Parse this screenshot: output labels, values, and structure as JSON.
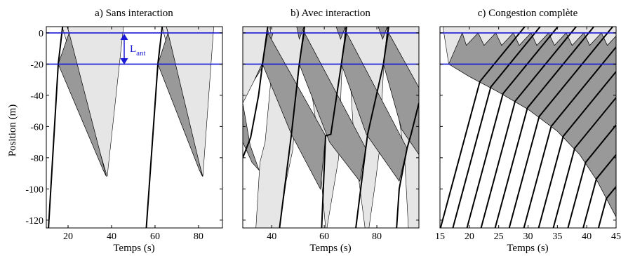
{
  "figure": {
    "ylabel": "Position (m)",
    "colors": {
      "reference_line": "#1a1ad6",
      "light_region": "#e6e6e6",
      "dark_region": "#999999",
      "trajectory": "#000000"
    }
  },
  "chart_data": [
    {
      "type": "area",
      "title": "a) Sans interaction",
      "xlabel": "Temps (s)",
      "ylabel": "Position (m)",
      "xlim": [
        10,
        91
      ],
      "ylim": [
        -125,
        4
      ],
      "xticks": [
        20,
        40,
        60,
        80
      ],
      "yticks": [
        0,
        -20,
        -40,
        -60,
        -80,
        -100,
        -120
      ],
      "ytick_labels": [
        "0",
        "-20",
        "-40",
        "-60",
        "-80",
        "-100",
        "-120"
      ],
      "reference_lines": [
        0,
        -20
      ],
      "annotation": {
        "text": "L",
        "subscript": "ant",
        "between": [
          0,
          -20
        ],
        "x": 45.5
      },
      "light_regions": [
        [
          [
            17.3,
            4
          ],
          [
            38,
            -92
          ],
          [
            45.5,
            4
          ]
        ],
        [
          [
            63.2,
            4
          ],
          [
            82,
            -92
          ],
          [
            87,
            4
          ]
        ]
      ],
      "dark_regions": [
        [
          [
            15.5,
            -20
          ],
          [
            20.5,
            0
          ],
          [
            37.6,
            -92
          ],
          [
            36.2,
            -88
          ]
        ],
        [
          [
            61.3,
            -20
          ],
          [
            66,
            0
          ],
          [
            81.8,
            -92
          ],
          [
            80.4,
            -88
          ]
        ]
      ],
      "trajectories": [
        [
          [
            11,
            -125
          ],
          [
            15.5,
            -20
          ],
          [
            17.5,
            4
          ]
        ],
        [
          [
            56,
            -125
          ],
          [
            61.3,
            -20
          ],
          [
            63.3,
            4
          ]
        ]
      ],
      "thin_lines": [
        [
          [
            20.5,
            0
          ],
          [
            19.6,
            4
          ]
        ],
        [
          [
            66,
            0
          ],
          [
            65.2,
            4
          ]
        ]
      ]
    },
    {
      "type": "area",
      "title": "b) Avec interaction",
      "xlabel": "Temps (s)",
      "xlim": [
        29,
        96
      ],
      "ylim": [
        -125,
        4
      ],
      "xticks": [
        40,
        60,
        80
      ],
      "yticks": [
        0,
        -20,
        -40,
        -60,
        -80,
        -100,
        -120
      ],
      "reference_lines": [
        0,
        -20
      ],
      "light_regions": [
        [
          [
            29,
            4
          ],
          [
            96,
            4
          ],
          [
            96,
            -125
          ],
          [
            29,
            -125
          ]
        ]
      ],
      "white_regions": [
        [
          [
            29,
            -125
          ],
          [
            29,
            -45
          ],
          [
            33.5,
            -30
          ],
          [
            36.3,
            -20
          ],
          [
            37.5,
            -10
          ],
          [
            38.5,
            0
          ],
          [
            39.5,
            4
          ],
          [
            39.7,
            -30
          ],
          [
            37.5,
            -70
          ],
          [
            35.5,
            -83
          ],
          [
            34,
            -125
          ]
        ],
        [
          [
            43,
            -125
          ],
          [
            45.5,
            -95
          ],
          [
            48,
            -75
          ],
          [
            50.5,
            -20
          ],
          [
            52.3,
            4
          ],
          [
            54.5,
            -30
          ],
          [
            57.5,
            -65
          ],
          [
            59,
            -97
          ],
          [
            60.5,
            -125
          ]
        ],
        [
          [
            61,
            -125
          ],
          [
            63,
            -105
          ],
          [
            65.5,
            -80
          ],
          [
            66.5,
            -30
          ],
          [
            68,
            4
          ],
          [
            69.5,
            -20
          ],
          [
            71,
            -60
          ],
          [
            72.3,
            -83
          ],
          [
            75.5,
            -125
          ]
        ],
        [
          [
            77,
            -125
          ],
          [
            79.5,
            -95
          ],
          [
            81,
            -75
          ],
          [
            82.5,
            -25
          ],
          [
            84,
            4
          ],
          [
            86.5,
            -20
          ],
          [
            88,
            -50
          ],
          [
            90.5,
            -78
          ],
          [
            92,
            -125
          ]
        ]
      ],
      "dark_regions": [
        [
          [
            29,
            -45
          ],
          [
            29,
            -70
          ],
          [
            32.5,
            -83
          ],
          [
            35.2,
            -88
          ],
          [
            31.8,
            -72
          ]
        ],
        [
          [
            33.5,
            -30
          ],
          [
            36.3,
            -20
          ],
          [
            38.5,
            0
          ],
          [
            40.5,
            0
          ],
          [
            37.2,
            -20
          ]
        ],
        [
          [
            36.5,
            -20
          ],
          [
            38.5,
            0
          ],
          [
            60.5,
            -66
          ],
          [
            58.5,
            -100
          ],
          [
            47.5,
            -65
          ],
          [
            36.5,
            -20
          ]
        ],
        [
          [
            50.5,
            -20
          ],
          [
            52.5,
            0
          ],
          [
            75.8,
            -74
          ],
          [
            73.5,
            -95
          ],
          [
            62,
            -70
          ],
          [
            50.5,
            -20
          ]
        ],
        [
          [
            66.5,
            -20
          ],
          [
            68.5,
            0
          ],
          [
            91.5,
            -74
          ],
          [
            88.5,
            -95
          ],
          [
            76,
            -65
          ],
          [
            66.5,
            -20
          ]
        ],
        [
          [
            82.5,
            -20
          ],
          [
            84.5,
            0
          ],
          [
            96,
            -35
          ],
          [
            96,
            -78
          ],
          [
            89.5,
            -62
          ],
          [
            82.5,
            -20
          ]
        ],
        [
          [
            49.5,
            4
          ],
          [
            52.3,
            4
          ],
          [
            50.5,
            -4
          ]
        ],
        [
          [
            64.5,
            4
          ],
          [
            68,
            4
          ],
          [
            66.2,
            -4
          ]
        ],
        [
          [
            80.5,
            4
          ],
          [
            84,
            4
          ],
          [
            82.2,
            -4
          ]
        ]
      ],
      "trajectories": [
        [
          [
            29,
            -80
          ],
          [
            32,
            -67
          ],
          [
            35,
            -40
          ],
          [
            36.5,
            -20
          ],
          [
            38.5,
            4
          ]
        ],
        [
          [
            43,
            -125
          ],
          [
            47.5,
            -65
          ],
          [
            50.5,
            -20
          ],
          [
            52.5,
            4
          ]
        ],
        [
          [
            59,
            -125
          ],
          [
            60.5,
            -66
          ],
          [
            62.5,
            -65
          ],
          [
            66.5,
            -20
          ],
          [
            68.5,
            4
          ]
        ],
        [
          [
            72,
            -125
          ],
          [
            74,
            -98
          ],
          [
            75.8,
            -74
          ],
          [
            76.5,
            -65
          ],
          [
            82.5,
            -20
          ],
          [
            84.5,
            4
          ]
        ],
        [
          [
            87.5,
            -125
          ],
          [
            88.5,
            -100
          ],
          [
            91.5,
            -74
          ],
          [
            93,
            -65
          ],
          [
            96,
            -45
          ]
        ]
      ]
    },
    {
      "type": "area",
      "title": "c) Congestion complète",
      "xlabel": "Temps (s)",
      "xlim": [
        15,
        45
      ],
      "ylim": [
        -125,
        4
      ],
      "xticks": [
        15,
        20,
        25,
        30,
        35,
        40,
        45
      ],
      "yticks": [
        0,
        -20,
        -40,
        -60,
        -80,
        -100,
        -120
      ],
      "reference_lines": [
        0,
        -20
      ],
      "light_regions": [
        [
          [
            15.5,
            4
          ],
          [
            45,
            4
          ],
          [
            45,
            -20
          ],
          [
            16.5,
            -20
          ]
        ]
      ],
      "dark_regions": [
        [
          [
            16.5,
            -20
          ],
          [
            18.8,
            0
          ],
          [
            19.5,
            -8
          ],
          [
            21.5,
            0
          ],
          [
            22.5,
            -8
          ],
          [
            24.5,
            0
          ],
          [
            25.5,
            -8
          ],
          [
            27.5,
            0
          ],
          [
            28.5,
            -8
          ],
          [
            30.5,
            0
          ],
          [
            31.5,
            -8
          ],
          [
            33.5,
            0
          ],
          [
            34.5,
            -8
          ],
          [
            36.5,
            0
          ],
          [
            37.5,
            -8
          ],
          [
            39.5,
            0
          ],
          [
            40.5,
            -8
          ],
          [
            42.5,
            0
          ],
          [
            43.5,
            -8
          ],
          [
            45,
            -2
          ],
          [
            45,
            -118
          ],
          [
            41.8,
            -95
          ],
          [
            38.8,
            -78
          ],
          [
            35,
            -63
          ],
          [
            30,
            -49
          ],
          [
            25,
            -38
          ],
          [
            20,
            -28
          ],
          [
            16.5,
            -20
          ]
        ]
      ],
      "vehicle_starts": [
        15.1,
        17.2,
        19.6,
        22.0,
        24.4,
        26.8,
        29.3,
        31.8,
        34.3,
        36.8,
        39.4,
        42.0
      ],
      "traj_up_slope_m_per_s": 14,
      "traj_down_slope_m_per_s": 4.6
    }
  ]
}
